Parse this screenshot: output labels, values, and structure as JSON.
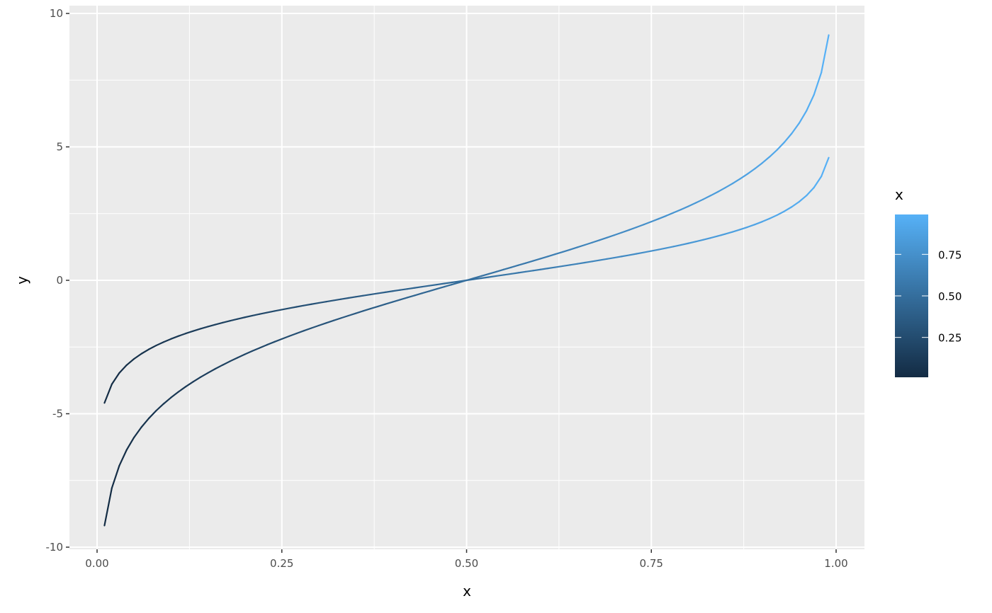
{
  "chart_data": {
    "type": "line",
    "xlabel": "x",
    "ylabel": "y",
    "xlim": [
      -0.0375,
      1.0375
    ],
    "ylim": [
      -10.1,
      10.1
    ],
    "x_ticks": [
      0,
      0.25,
      0.5,
      0.75,
      1
    ],
    "x_tick_labels": [
      "0.00",
      "0.25",
      "0.50",
      "0.75",
      "1.00"
    ],
    "y_ticks": [
      -10,
      -5,
      0,
      5,
      10
    ],
    "y_tick_labels": [
      "-10",
      "-5",
      "0",
      "5",
      "10"
    ],
    "grid": true,
    "panel_background": "#EBEBEB",
    "color_by": "x",
    "x": [
      0.01,
      0.02,
      0.03,
      0.04,
      0.05,
      0.06,
      0.07,
      0.08,
      0.09,
      0.1,
      0.11,
      0.12,
      0.13,
      0.14,
      0.15,
      0.16,
      0.17,
      0.18,
      0.19,
      0.2,
      0.21,
      0.22,
      0.23,
      0.24,
      0.25,
      0.26,
      0.27,
      0.28,
      0.29,
      0.3,
      0.31,
      0.32,
      0.33,
      0.34,
      0.35,
      0.36,
      0.37,
      0.38,
      0.39,
      0.4,
      0.41,
      0.42,
      0.43,
      0.44,
      0.45,
      0.46,
      0.47,
      0.48,
      0.49,
      0.5,
      0.51,
      0.52,
      0.53,
      0.54,
      0.55,
      0.56,
      0.57,
      0.58,
      0.59,
      0.6,
      0.61,
      0.62,
      0.63,
      0.64,
      0.65,
      0.66,
      0.67,
      0.68,
      0.69,
      0.7,
      0.71,
      0.72,
      0.73,
      0.74,
      0.75,
      0.76,
      0.77,
      0.78,
      0.79,
      0.8,
      0.81,
      0.82,
      0.83,
      0.84,
      0.85,
      0.86,
      0.87,
      0.88,
      0.89,
      0.9,
      0.91,
      0.92,
      0.93,
      0.94,
      0.95,
      0.96,
      0.97,
      0.98,
      0.99
    ],
    "series": [
      {
        "values": [
          -4.595,
          -3.892,
          -3.476,
          -3.178,
          -2.944,
          -2.752,
          -2.587,
          -2.442,
          -2.314,
          -2.197,
          -2.091,
          -1.992,
          -1.901,
          -1.815,
          -1.735,
          -1.658,
          -1.586,
          -1.516,
          -1.45,
          -1.386,
          -1.325,
          -1.266,
          -1.208,
          -1.153,
          -1.099,
          -1.046,
          -0.995,
          -0.944,
          -0.895,
          -0.847,
          -0.8,
          -0.754,
          -0.708,
          -0.663,
          -0.619,
          -0.575,
          -0.532,
          -0.49,
          -0.447,
          -0.405,
          -0.364,
          -0.323,
          -0.282,
          -0.241,
          -0.201,
          -0.16,
          -0.12,
          -0.08,
          -0.04,
          0,
          0.04,
          0.08,
          0.12,
          0.16,
          0.201,
          0.241,
          0.282,
          0.323,
          0.364,
          0.405,
          0.447,
          0.49,
          0.532,
          0.575,
          0.619,
          0.663,
          0.708,
          0.754,
          0.8,
          0.847,
          0.895,
          0.944,
          0.995,
          1.046,
          1.099,
          1.153,
          1.208,
          1.266,
          1.325,
          1.386,
          1.45,
          1.516,
          1.586,
          1.658,
          1.735,
          1.815,
          1.901,
          1.992,
          2.091,
          2.197,
          2.314,
          2.442,
          2.587,
          2.752,
          2.944,
          3.178,
          3.476,
          3.892,
          4.595
        ]
      },
      {
        "values": [
          -9.19,
          -7.784,
          -6.952,
          -6.356,
          -5.888,
          -5.504,
          -5.174,
          -4.884,
          -4.628,
          -4.394,
          -4.182,
          -3.984,
          -3.802,
          -3.63,
          -3.47,
          -3.316,
          -3.172,
          -3.032,
          -2.9,
          -2.772,
          -2.65,
          -2.532,
          -2.416,
          -2.306,
          -2.198,
          -2.092,
          -1.99,
          -1.888,
          -1.79,
          -1.694,
          -1.6,
          -1.508,
          -1.416,
          -1.326,
          -1.238,
          -1.15,
          -1.064,
          -0.98,
          -0.894,
          -0.81,
          -0.728,
          -0.646,
          -0.564,
          -0.482,
          -0.402,
          -0.32,
          -0.24,
          -0.16,
          -0.08,
          0,
          0.08,
          0.16,
          0.24,
          0.32,
          0.402,
          0.482,
          0.564,
          0.646,
          0.728,
          0.81,
          0.894,
          0.98,
          1.064,
          1.15,
          1.238,
          1.326,
          1.416,
          1.508,
          1.6,
          1.694,
          1.79,
          1.888,
          1.99,
          2.092,
          2.198,
          2.306,
          2.416,
          2.532,
          2.65,
          2.772,
          2.9,
          3.032,
          3.172,
          3.316,
          3.47,
          3.63,
          3.802,
          3.984,
          4.182,
          4.394,
          4.628,
          4.884,
          5.174,
          5.504,
          5.888,
          6.356,
          6.952,
          7.784,
          9.19
        ]
      }
    ],
    "legend": {
      "title": "x",
      "position": "right",
      "type": "colorbar",
      "breaks": [
        0.25,
        0.5,
        0.75
      ],
      "labels": [
        "0.25",
        "0.50",
        "0.75"
      ],
      "range": [
        0.01,
        0.99
      ],
      "low_color": "#132B43",
      "high_color": "#56B1F7"
    }
  }
}
